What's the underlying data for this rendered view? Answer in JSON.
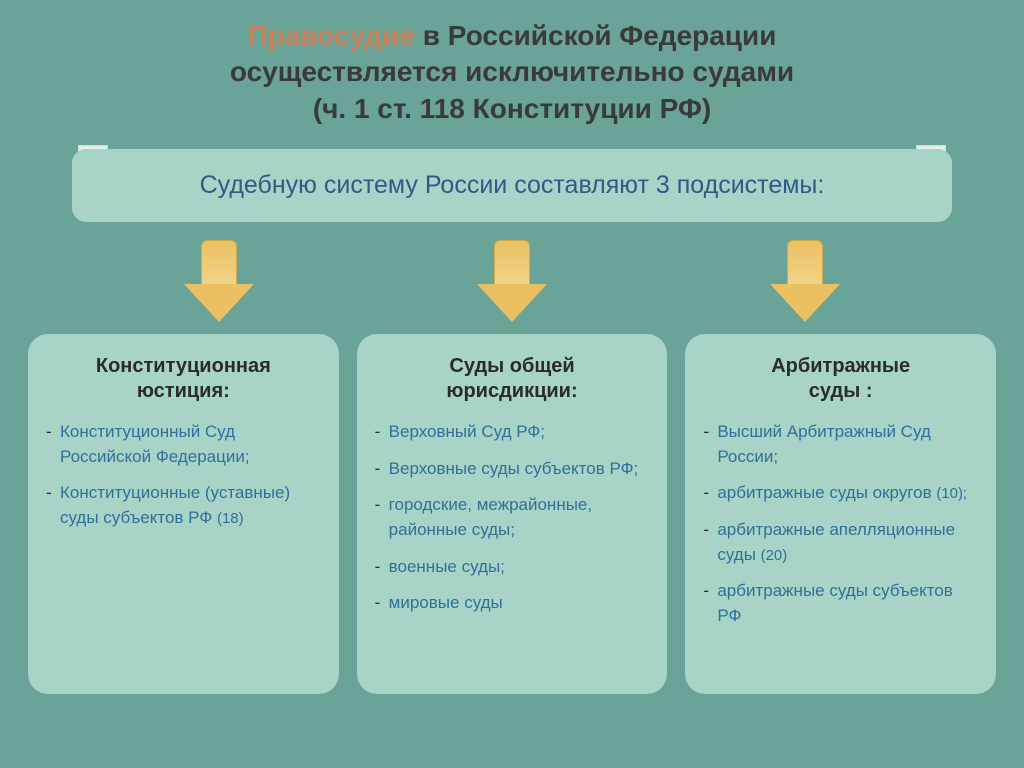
{
  "colors": {
    "slide_bg": "#6aa397",
    "title_highlight": "#c9835a",
    "title_main": "#3a3a3a",
    "banner_bg": "#a8d4c8",
    "banner_text": "#2f5a88",
    "scroll_bg": "#dff1ea",
    "arrow_fill": "#eac063",
    "arrow_border": "#d4a94a",
    "card_bg": "#a8d4c8",
    "card_heading": "#2b2b2b",
    "list_text": "#2f6f99",
    "list_dash": "#2b2b2b"
  },
  "title": {
    "highlight_word": "Правосудие",
    "line1_rest": " в Российской Федерации",
    "line2": "осуществляется исключительно судами",
    "line3": "(ч. 1 ст. 118 Конституции РФ)"
  },
  "banner": "Судебную систему России составляют 3 подсистемы:",
  "columns": [
    {
      "heading_l1": "Конституционная",
      "heading_l2": "юстиция:",
      "items": [
        {
          "text": "Конституционный Суд Российской Федерации;",
          "note": ""
        },
        {
          "text": "Конституционные (уставные) суды субъектов РФ ",
          "note": "(18)"
        }
      ]
    },
    {
      "heading_l1": "Суды общей",
      "heading_l2": "юрисдикции:",
      "items": [
        {
          "text": "Верховный Суд РФ;",
          "note": ""
        },
        {
          "text": "Верховные суды субъектов РФ;",
          "note": ""
        },
        {
          "text": "городские, межрайонные, районные суды;",
          "note": ""
        },
        {
          "text": "военные суды;",
          "note": ""
        },
        {
          "text": "мировые суды",
          "note": ""
        }
      ]
    },
    {
      "heading_l1": "Арбитражные",
      "heading_l2": "суды :",
      "items": [
        {
          "text": "Высший Арбитражный Суд России;",
          "note": ""
        },
        {
          "text": "арбитражные суды округов ",
          "note": "(10);"
        },
        {
          "text": "арбитражные апелляционные суды ",
          "note": "(20)"
        },
        {
          "text": "арбитражные суды субъектов РФ",
          "note": ""
        }
      ]
    }
  ]
}
